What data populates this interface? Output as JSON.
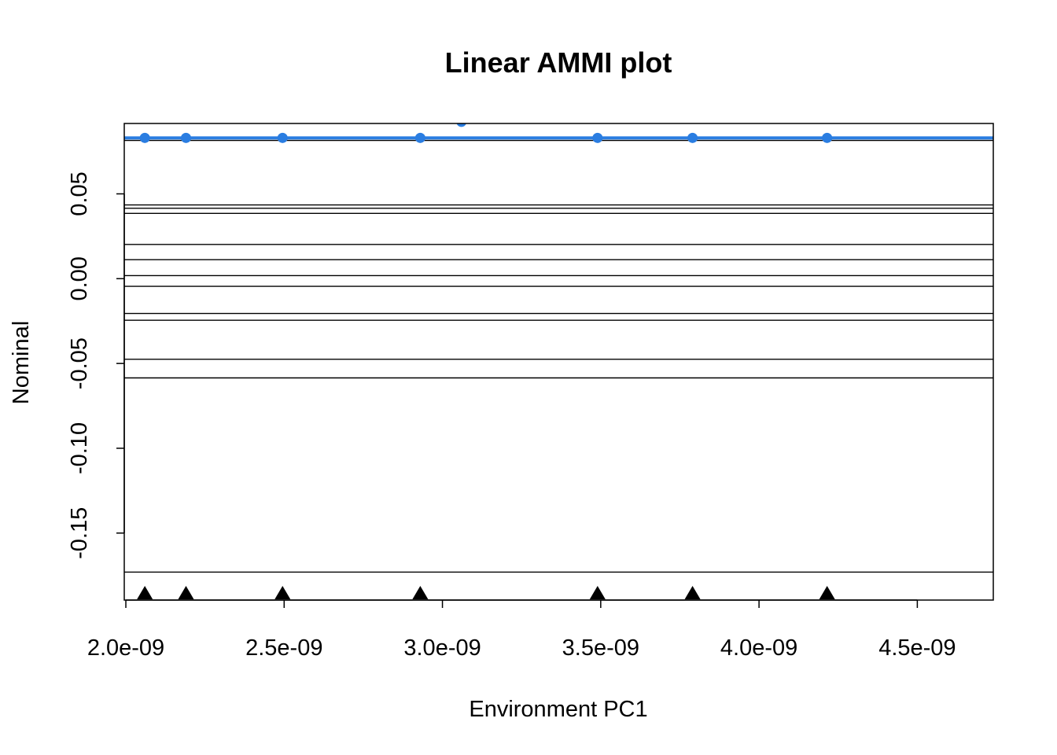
{
  "chart_data": {
    "type": "line",
    "title": "Linear AMMI plot",
    "xlabel": "Environment PC1",
    "ylabel": "Nominal",
    "xlim": [
      1.995e-09,
      4.74e-09
    ],
    "ylim": [
      -0.1895,
      0.0915
    ],
    "x_ticks": [
      2e-09,
      2.5e-09,
      3e-09,
      3.5e-09,
      4e-09,
      4.5e-09
    ],
    "x_tick_labels": [
      "2.0e-09",
      "2.5e-09",
      "3.0e-09",
      "3.5e-09",
      "4.0e-09",
      "4.5e-09"
    ],
    "y_ticks": [
      -0.15,
      -0.1,
      -0.05,
      0.0,
      0.05
    ],
    "y_tick_labels": [
      "-0.15",
      "-0.10",
      "-0.05",
      "0.00",
      "0.05"
    ],
    "grid": false,
    "environment_x": [
      2.06e-09,
      2.19e-09,
      2.495e-09,
      2.93e-09,
      3.49e-09,
      3.79e-09,
      4.215e-09
    ],
    "genotype_lines": [
      0.083,
      0.0815,
      0.0435,
      0.0415,
      0.0385,
      0.0202,
      0.0112,
      0.0018,
      -0.0045,
      -0.0205,
      -0.0245,
      -0.0475,
      -0.0585,
      -0.173
    ],
    "highlight_line": {
      "y": 0.083,
      "color": "#2a7de1"
    },
    "highlight_points": [
      0.083,
      0.083,
      0.083,
      0.083,
      0.083,
      0.083,
      0.083
    ],
    "highlight_extra_point": {
      "x": 3.06e-09,
      "y": 0.0925
    },
    "colors": {
      "highlight": "#2a7de1",
      "lines": "#000000"
    }
  }
}
